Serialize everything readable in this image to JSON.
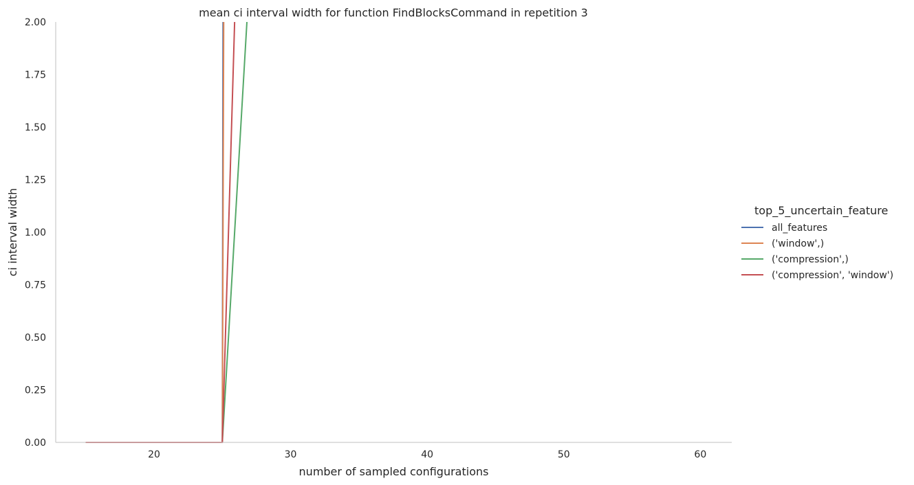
{
  "chart_data": {
    "type": "line",
    "title": "mean ci interval width for function FindBlocksCommand in repetition 3",
    "xlabel": "number of sampled configurations",
    "ylabel": "ci interval width",
    "xlim": [
      12.8,
      62.3
    ],
    "ylim": [
      0,
      2
    ],
    "xticks": [
      20,
      30,
      40,
      50,
      60
    ],
    "yticks": [
      "0.00",
      "0.25",
      "0.50",
      "0.75",
      "1.00",
      "1.25",
      "1.50",
      "1.75",
      "2.00"
    ],
    "grid": false,
    "legend": {
      "title": "top_5_uncertain_feature",
      "placement": "right"
    },
    "series": [
      {
        "name": "all_features",
        "color": "#4c72b0",
        "x": [
          15,
          20,
          24,
          25,
          25.05
        ],
        "y": [
          0,
          0,
          0,
          0,
          2.0
        ]
      },
      {
        "name": "('window',)",
        "color": "#dd8452",
        "x": [
          15,
          20,
          24,
          25,
          25.1
        ],
        "y": [
          0,
          0,
          0,
          0,
          2.0
        ]
      },
      {
        "name": "('compression',)",
        "color": "#55a868",
        "x": [
          15,
          20,
          24,
          25,
          26.8
        ],
        "y": [
          0,
          0,
          0,
          0,
          2.0
        ]
      },
      {
        "name": "('compression', 'window')",
        "color": "#c44e52",
        "x": [
          15,
          20,
          24,
          25,
          25.9
        ],
        "y": [
          0,
          0,
          0,
          0,
          2.0
        ]
      }
    ]
  }
}
